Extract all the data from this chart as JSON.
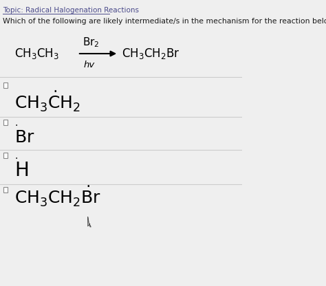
{
  "bg_color": "#efefef",
  "topic_text": "Topic: Radical Halogenation Reactions",
  "question": "Which of the following are likely intermediate/s in the mechanism for the reaction below.",
  "divider_color": "#cccccc",
  "text_color": "#1a1a1a",
  "link_color": "#4a4a8a"
}
